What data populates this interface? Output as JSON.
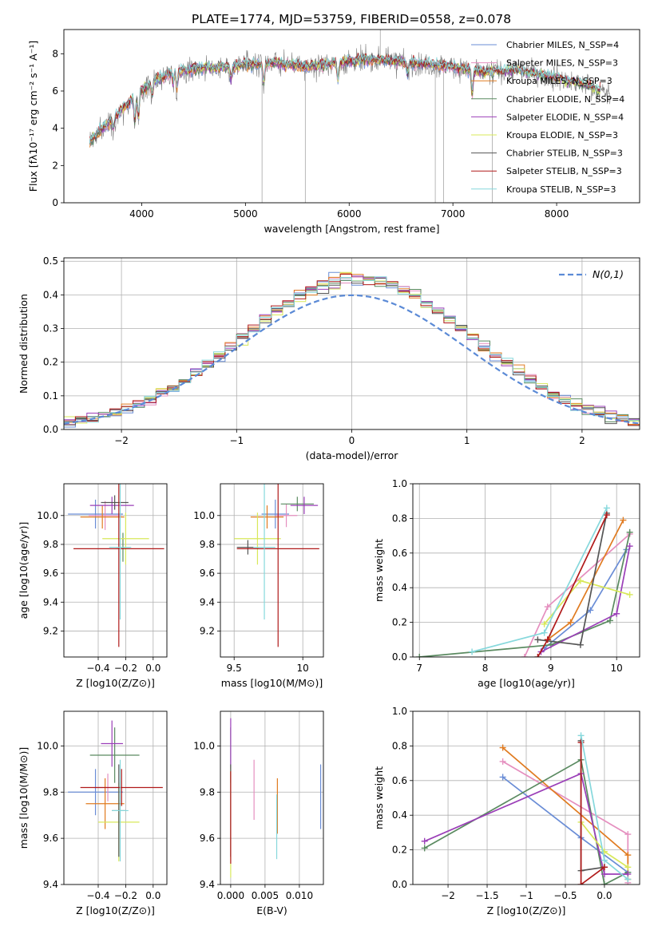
{
  "figure_title": "PLATE=1774, MJD=53759, FIBERID=0558, z=0.078",
  "colors": {
    "chabrier_miles": "#6a8dd6",
    "salpeter_miles": "#e58fbf",
    "kroupa_miles": "#e07b20",
    "chabrier_elodie": "#5a8a60",
    "salpeter_elodie": "#9b3fb8",
    "kroupa_elodie": "#d8e85a",
    "chabrier_stelib": "#555555",
    "salpeter_stelib": "#b01a1a",
    "kroupa_stelib": "#86d8dc",
    "normal_curve": "#5b8ad6"
  },
  "chart_data": [
    {
      "id": "spectrum",
      "type": "line",
      "xlabel": "wavelength [Angstrom, rest frame]",
      "ylabel": "Flux [fλ10⁻¹⁷ erg cm⁻² s⁻¹ A⁻¹]",
      "xlim": [
        3250,
        8800
      ],
      "ylim": [
        0,
        9.3
      ],
      "xticks": [
        4000,
        5000,
        6000,
        7000,
        8000
      ],
      "yticks": [
        0,
        2,
        4,
        6,
        8
      ],
      "legend_position": "right",
      "series": [
        {
          "name": "Chabrier MILES, N_SSP=4",
          "key": "chabrier_miles"
        },
        {
          "name": "Salpeter MILES, N_SSP=3",
          "key": "salpeter_miles"
        },
        {
          "name": "Kroupa MILES, N_SSP=3",
          "key": "kroupa_miles"
        },
        {
          "name": "Chabrier ELODIE, N_SSP=4",
          "key": "chabrier_elodie"
        },
        {
          "name": "Salpeter ELODIE, N_SSP=4",
          "key": "salpeter_elodie"
        },
        {
          "name": "Kroupa ELODIE, N_SSP=3",
          "key": "kroupa_elodie"
        },
        {
          "name": "Chabrier STELIB, N_SSP=3",
          "key": "chabrier_stelib"
        },
        {
          "name": "Salpeter STELIB, N_SSP=3",
          "key": "salpeter_stelib"
        },
        {
          "name": "Kroupa STELIB, N_SSP=3",
          "key": "kroupa_stelib"
        }
      ],
      "continuum": {
        "x": [
          3500,
          3700,
          3900,
          4000,
          4100,
          4300,
          4500,
          4800,
          5000,
          5300,
          5600,
          6000,
          6300,
          6600,
          7000,
          7300,
          7600,
          8000,
          8300,
          8500
        ],
        "y": [
          3.3,
          4.4,
          5.5,
          6.0,
          6.5,
          7.0,
          7.2,
          7.3,
          7.4,
          7.5,
          7.3,
          7.6,
          7.7,
          7.5,
          7.3,
          7.0,
          7.1,
          6.7,
          6.3,
          5.8
        ]
      }
    },
    {
      "id": "residual_hist",
      "type": "histogram",
      "xlabel": "(data-model)/error",
      "ylabel": "Normed distribution",
      "xlim": [
        -2.5,
        2.5
      ],
      "ylim": [
        0,
        0.51
      ],
      "xticks": [
        -2,
        -1,
        0,
        1,
        2
      ],
      "yticks": [
        0.0,
        0.1,
        0.2,
        0.3,
        0.4,
        0.5
      ],
      "grid": true,
      "legend_position": "top-right",
      "legend_label": "N(0,1)",
      "bin_width": 0.1,
      "bin_start": -2.5
    },
    {
      "id": "age_vs_Z",
      "type": "errorbar",
      "xlabel": "Z [log10(Z/Z⊙)]",
      "ylabel": "age [log10(age/yr)]",
      "xlim": [
        -0.65,
        0.1
      ],
      "ylim": [
        9.02,
        10.22
      ],
      "xticks": [
        -0.4,
        -0.2,
        0.0
      ],
      "yticks": [
        9.2,
        9.4,
        9.6,
        9.8,
        10.0
      ],
      "grid": true,
      "points": [
        {
          "key": "chabrier_miles",
          "x": -0.42,
          "xerr": 0.2,
          "y": 10.01,
          "yerr": 0.1
        },
        {
          "key": "salpeter_miles",
          "x": -0.35,
          "xerr": 0.12,
          "y": 10.0,
          "yerr": 0.1
        },
        {
          "key": "kroupa_miles",
          "x": -0.37,
          "xerr": 0.16,
          "y": 9.99,
          "yerr": 0.08
        },
        {
          "key": "chabrier_elodie",
          "x": -0.22,
          "xerr": 0.05,
          "y": 9.78,
          "yerr": 0.1
        },
        {
          "key": "salpeter_elodie",
          "x": -0.3,
          "xerr": 0.16,
          "y": 10.07,
          "yerr": 0.06
        },
        {
          "key": "kroupa_elodie",
          "x": -0.2,
          "xerr": 0.17,
          "y": 9.84,
          "yerr": 0.18
        },
        {
          "key": "chabrier_stelib",
          "x": -0.28,
          "xerr": 0.1,
          "y": 10.09,
          "yerr": 0.05
        },
        {
          "key": "salpeter_stelib",
          "x": -0.25,
          "xerr": 0.33,
          "y": 9.77,
          "yerr": 0.68
        },
        {
          "key": "kroupa_stelib",
          "x": -0.24,
          "xerr": 0.08,
          "y": 9.78,
          "yerr": 0.5
        }
      ]
    },
    {
      "id": "age_vs_mass",
      "type": "errorbar",
      "xlabel": "mass [log10(M/M⊙)]",
      "ylabel": "",
      "xlim": [
        9.4,
        10.15
      ],
      "ylim": [
        9.02,
        10.22
      ],
      "xticks": [
        9.5,
        10.0
      ],
      "yticks": [
        9.2,
        9.4,
        9.6,
        9.8,
        10.0
      ],
      "grid": true,
      "points": [
        {
          "key": "chabrier_miles",
          "x": 9.8,
          "xerr": 0.1,
          "y": 10.01,
          "yerr": 0.1
        },
        {
          "key": "salpeter_miles",
          "x": 9.88,
          "xerr": 0.08,
          "y": 10.0,
          "yerr": 0.08
        },
        {
          "key": "kroupa_miles",
          "x": 9.74,
          "xerr": 0.12,
          "y": 9.99,
          "yerr": 0.08
        },
        {
          "key": "chabrier_elodie",
          "x": 9.96,
          "xerr": 0.12,
          "y": 10.08,
          "yerr": 0.05
        },
        {
          "key": "salpeter_elodie",
          "x": 10.01,
          "xerr": 0.1,
          "y": 10.07,
          "yerr": 0.06
        },
        {
          "key": "kroupa_elodie",
          "x": 9.67,
          "xerr": 0.17,
          "y": 9.84,
          "yerr": 0.18
        },
        {
          "key": "chabrier_stelib",
          "x": 9.6,
          "xerr": 0.08,
          "y": 9.78,
          "yerr": 0.05
        },
        {
          "key": "salpeter_stelib",
          "x": 9.82,
          "xerr": 0.3,
          "y": 9.77,
          "yerr": 0.68
        },
        {
          "key": "kroupa_stelib",
          "x": 9.72,
          "xerr": 0.08,
          "y": 9.78,
          "yerr": 0.5
        }
      ]
    },
    {
      "id": "mass_weight_vs_age",
      "type": "line",
      "xlabel": "age [log10(age/yr)]",
      "ylabel": "mass weight",
      "xlim": [
        6.9,
        10.35
      ],
      "ylim": [
        0,
        1.0
      ],
      "xticks": [
        7,
        8,
        9,
        10
      ],
      "yticks": [
        0.0,
        0.2,
        0.4,
        0.6,
        0.8,
        1.0
      ],
      "grid": true,
      "series": [
        {
          "key": "chabrier_miles",
          "x": [
            8.9,
            9.6,
            10.15
          ],
          "y": [
            0.05,
            0.27,
            0.62
          ]
        },
        {
          "key": "salpeter_miles",
          "x": [
            8.6,
            8.95,
            10.2
          ],
          "y": [
            0.0,
            0.29,
            0.71
          ]
        },
        {
          "key": "kroupa_miles",
          "x": [
            8.95,
            9.3,
            10.1
          ],
          "y": [
            0.1,
            0.2,
            0.79
          ]
        },
        {
          "key": "chabrier_elodie",
          "x": [
            7.0,
            9.0,
            9.9,
            10.2
          ],
          "y": [
            0.0,
            0.07,
            0.21,
            0.72
          ]
        },
        {
          "key": "salpeter_elodie",
          "x": [
            8.85,
            10.0,
            10.2
          ],
          "y": [
            0.03,
            0.25,
            0.64
          ]
        },
        {
          "key": "kroupa_elodie",
          "x": [
            8.9,
            9.45,
            10.2
          ],
          "y": [
            0.19,
            0.44,
            0.36
          ]
        },
        {
          "key": "chabrier_stelib",
          "x": [
            8.8,
            9.45,
            9.85
          ],
          "y": [
            0.1,
            0.07,
            0.83
          ]
        },
        {
          "key": "salpeter_stelib",
          "x": [
            8.8,
            8.95,
            9.85
          ],
          "y": [
            0.0,
            0.1,
            0.82
          ]
        },
        {
          "key": "kroupa_stelib",
          "x": [
            7.8,
            8.9,
            9.85
          ],
          "y": [
            0.03,
            0.14,
            0.86
          ]
        }
      ]
    },
    {
      "id": "mass_vs_Z",
      "type": "errorbar",
      "xlabel": "Z [log10(Z/Z⊙)]",
      "ylabel": "mass [log10(M/M⊙)]",
      "xlim": [
        -0.65,
        0.1
      ],
      "ylim": [
        9.4,
        10.15
      ],
      "xticks": [
        -0.4,
        -0.2,
        0.0
      ],
      "yticks": [
        9.4,
        9.6,
        9.8,
        10.0
      ],
      "grid": true,
      "points": [
        {
          "key": "chabrier_miles",
          "x": -0.42,
          "xerr": 0.2,
          "y": 9.8,
          "yerr": 0.1
        },
        {
          "key": "salpeter_miles",
          "x": -0.33,
          "xerr": 0.1,
          "y": 9.82,
          "yerr": 0.06
        },
        {
          "key": "kroupa_miles",
          "x": -0.35,
          "xerr": 0.14,
          "y": 9.75,
          "yerr": 0.11
        },
        {
          "key": "chabrier_elodie",
          "x": -0.28,
          "xerr": 0.18,
          "y": 9.96,
          "yerr": 0.12
        },
        {
          "key": "salpeter_elodie",
          "x": -0.3,
          "xerr": 0.08,
          "y": 10.01,
          "yerr": 0.1
        },
        {
          "key": "kroupa_elodie",
          "x": -0.25,
          "xerr": 0.15,
          "y": 9.67,
          "yerr": 0.17
        },
        {
          "key": "chabrier_stelib",
          "x": -0.25,
          "xerr": 0.05,
          "y": 9.72,
          "yerr": 0.2
        },
        {
          "key": "salpeter_stelib",
          "x": -0.23,
          "xerr": 0.3,
          "y": 9.82,
          "yerr": 0.08
        },
        {
          "key": "kroupa_stelib",
          "x": -0.24,
          "xerr": 0.06,
          "y": 9.72,
          "yerr": 0.22
        }
      ]
    },
    {
      "id": "mass_vs_EBV",
      "type": "errorbar",
      "xlabel": "E(B-V)",
      "ylabel": "",
      "xlim": [
        -0.0015,
        0.0135
      ],
      "ylim": [
        9.4,
        10.15
      ],
      "xticks": [
        0.0,
        0.005,
        0.01
      ],
      "xtick_labels": [
        "0.000",
        "0.005",
        "0.010"
      ],
      "yticks": [
        9.4,
        9.6,
        9.8,
        10.0
      ],
      "grid": true,
      "points": [
        {
          "key": "chabrier_miles",
          "x": 0.0131,
          "y": 9.78,
          "yerr": 0.14
        },
        {
          "key": "salpeter_miles",
          "x": 0.0034,
          "y": 9.81,
          "yerr": 0.13
        },
        {
          "key": "kroupa_miles",
          "x": 0.0068,
          "y": 9.74,
          "yerr": 0.12
        },
        {
          "key": "chabrier_elodie",
          "x": 0.0,
          "y": 9.96,
          "yerr": 0.12
        },
        {
          "key": "salpeter_elodie",
          "x": 0.0,
          "y": 10.01,
          "yerr": 0.11
        },
        {
          "key": "kroupa_elodie",
          "x": 0.0,
          "y": 9.67,
          "yerr": 0.24
        },
        {
          "key": "chabrier_stelib",
          "x": 0.0,
          "y": 9.72,
          "yerr": 0.2
        },
        {
          "key": "salpeter_stelib",
          "x": 0.0,
          "y": 9.69,
          "yerr": 0.2
        },
        {
          "key": "kroupa_stelib",
          "x": 0.0067,
          "y": 9.65,
          "yerr": 0.14
        }
      ]
    },
    {
      "id": "mass_weight_vs_Z",
      "type": "line",
      "xlabel": "Z [log10(Z/Z⊙)]",
      "ylabel": "mass weight",
      "xlim": [
        -2.45,
        0.45
      ],
      "ylim": [
        0,
        1.0
      ],
      "xticks": [
        -2.0,
        -1.5,
        -1.0,
        -0.5,
        0.0
      ],
      "yticks": [
        0.0,
        0.2,
        0.4,
        0.6,
        0.8,
        1.0
      ],
      "grid": true,
      "series": [
        {
          "key": "chabrier_miles",
          "x": [
            -1.3,
            -0.3,
            0.3
          ],
          "y": [
            0.62,
            0.27,
            0.07
          ]
        },
        {
          "key": "salpeter_miles",
          "x": [
            -1.3,
            0.3,
            0.3
          ],
          "y": [
            0.71,
            0.29,
            0.01
          ]
        },
        {
          "key": "kroupa_miles",
          "x": [
            -1.3,
            0.3,
            0.3
          ],
          "y": [
            0.79,
            0.17,
            0.03
          ]
        },
        {
          "key": "chabrier_elodie",
          "x": [
            -2.3,
            -0.3,
            0.0,
            0.3
          ],
          "y": [
            0.21,
            0.72,
            0.0,
            0.07
          ]
        },
        {
          "key": "salpeter_elodie",
          "x": [
            -2.3,
            -0.3,
            0.0,
            0.3
          ],
          "y": [
            0.25,
            0.64,
            0.06,
            0.06
          ]
        },
        {
          "key": "kroupa_elodie",
          "x": [
            -0.3,
            0.0,
            0.3
          ],
          "y": [
            0.36,
            0.19,
            0.1
          ]
        },
        {
          "key": "chabrier_stelib",
          "x": [
            -0.3,
            -0.3,
            0.0
          ],
          "y": [
            0.83,
            0.08,
            0.1
          ]
        },
        {
          "key": "salpeter_stelib",
          "x": [
            -0.3,
            -0.3,
            0.0
          ],
          "y": [
            0.82,
            0.0,
            0.1
          ]
        },
        {
          "key": "kroupa_stelib",
          "x": [
            -0.3,
            0.0,
            0.3
          ],
          "y": [
            0.86,
            0.14,
            0.03
          ]
        }
      ]
    }
  ]
}
